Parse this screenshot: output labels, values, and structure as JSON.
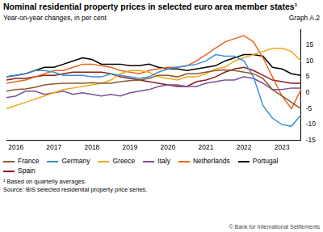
{
  "chart_data": {
    "type": "line",
    "title": "Nominal residential property prices in selected euro area member states¹",
    "subtitle": "Year-on-year changes, in per cent",
    "annotations": [
      "Graph A.2",
      "¹ Based on quarterly averages.",
      "Source: BIS selected residential property price series.",
      "© Bank for International Settlements"
    ],
    "categories": [
      null,
      "2016",
      null,
      null,
      null,
      "2017",
      null,
      null,
      null,
      "2018",
      null,
      null,
      null,
      "2019",
      null,
      null,
      null,
      "2020",
      null,
      null,
      null,
      "2021",
      null,
      null,
      null,
      "2022",
      null,
      null,
      null,
      "2023",
      null,
      null
    ],
    "series": [
      {
        "name": "France",
        "color": "#8c5a2e",
        "values": [
          0.5,
          1,
          1.2,
          1.7,
          2.5,
          2.8,
          3,
          3,
          3,
          3.2,
          3,
          3,
          3.5,
          3.8,
          4,
          4.5,
          5.5,
          5.5,
          5,
          6,
          6,
          6.5,
          7,
          7.2,
          7,
          6.5,
          6,
          4.5,
          1,
          -1,
          -3,
          -5
        ]
      },
      {
        "name": "Germany",
        "color": "#3b8fd0",
        "values": [
          5,
          5.5,
          6,
          7,
          7,
          6.5,
          5.5,
          5.5,
          5.5,
          5,
          5,
          6,
          5.5,
          5,
          4.5,
          5,
          6.5,
          7.5,
          8,
          8.5,
          9,
          10,
          12,
          11.5,
          11.5,
          10,
          5,
          -4,
          -8,
          -10,
          -10.5,
          -7
        ]
      },
      {
        "name": "Greece",
        "color": "#f3a51e",
        "values": [
          -5,
          -4,
          -3,
          -2,
          -1,
          0,
          1,
          1.5,
          2,
          2.5,
          3,
          4,
          6,
          7,
          7,
          6.5,
          5,
          4.5,
          4,
          5,
          5,
          6,
          7.5,
          8,
          10,
          11,
          12,
          13,
          14,
          14,
          13,
          10
        ]
      },
      {
        "name": "Italy",
        "color": "#7a4f9e",
        "values": [
          -1.5,
          -1,
          0.5,
          0.5,
          -0.5,
          0,
          0.5,
          -0.5,
          0,
          -0.5,
          -1,
          -0.5,
          -1,
          0,
          0.5,
          1,
          2,
          2.5,
          2.5,
          2,
          2,
          3,
          3.5,
          4,
          4,
          5,
          4.5,
          3,
          1,
          1,
          1.5,
          1.5
        ]
      },
      {
        "name": "Netherlands",
        "color": "#e8661e",
        "values": [
          3,
          3.5,
          4,
          5,
          6,
          7,
          7,
          8,
          9,
          9,
          8.5,
          8,
          7,
          6.5,
          6,
          7,
          7.5,
          8,
          8,
          8.5,
          10,
          12,
          14,
          16,
          17,
          18,
          16,
          11,
          5,
          -1,
          -5,
          1
        ]
      },
      {
        "name": "Portugal",
        "color": "#000000",
        "values": [
          5,
          5.5,
          6,
          7,
          8,
          8,
          9,
          10,
          11,
          10.5,
          9,
          9,
          9,
          8.5,
          8.5,
          9,
          8,
          7.5,
          7.5,
          7,
          7.5,
          8,
          8.5,
          10,
          11,
          12,
          12,
          11.5,
          8,
          7.5,
          6,
          5.5
        ]
      },
      {
        "name": "Spain",
        "color": "#8b1c1c",
        "values": [
          4,
          4.5,
          4.5,
          5,
          5.5,
          5.5,
          6,
          6.5,
          6.5,
          6.5,
          6.5,
          6,
          5,
          4.5,
          4,
          3.5,
          3,
          2.5,
          2,
          2,
          3.5,
          4,
          5,
          6.5,
          7.5,
          8,
          7,
          5.5,
          4,
          3.5,
          3,
          3
        ]
      }
    ],
    "ylim": [
      -15,
      20
    ],
    "yticks": [
      -15,
      -10,
      -5,
      0,
      5,
      10,
      15
    ],
    "grid": false
  }
}
